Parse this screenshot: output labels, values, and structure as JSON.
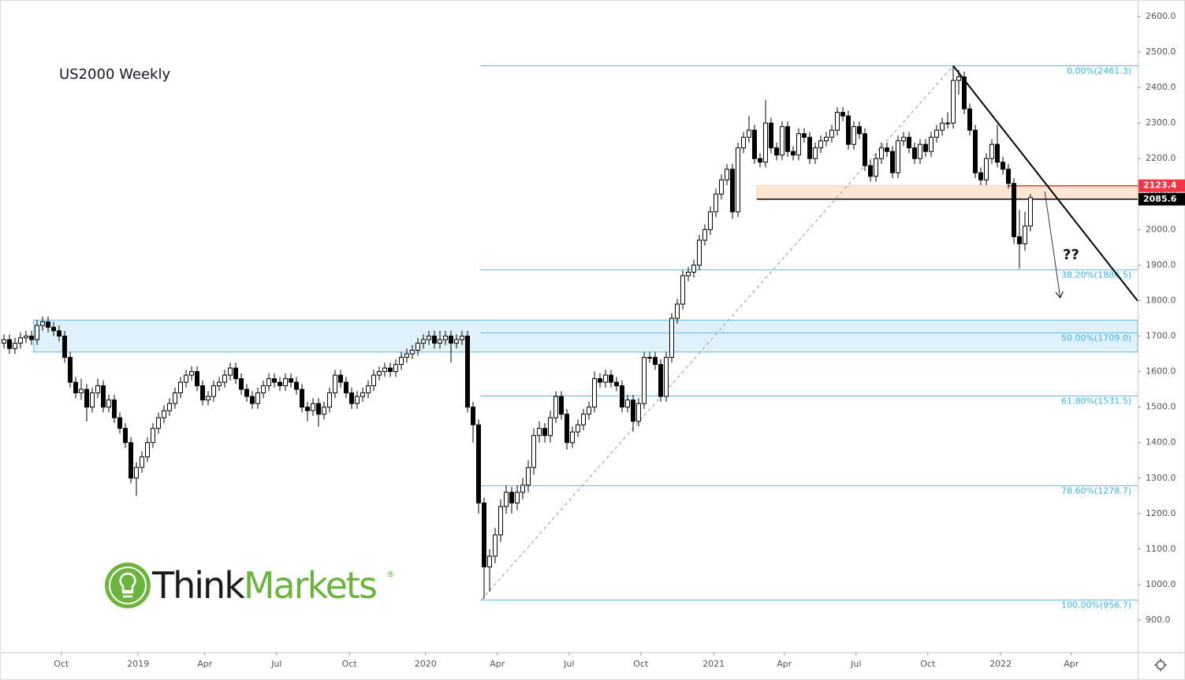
{
  "chart_data": {
    "type": "candlestick",
    "title": "US2000 Weekly",
    "xlim": [
      -0.714,
      205.43
    ],
    "ylim": [
      809.0,
      2646.6
    ],
    "xticks": [
      {
        "value": 10.4,
        "label": "Oct"
      },
      {
        "value": 24.3,
        "label": "2019"
      },
      {
        "value": 36.4,
        "label": "Apr"
      },
      {
        "value": 49.4,
        "label": "Jul"
      },
      {
        "value": 62.6,
        "label": "Oct"
      },
      {
        "value": 76.4,
        "label": "2020"
      },
      {
        "value": 89.4,
        "label": "Apr"
      },
      {
        "value": 102.4,
        "label": "Jul"
      },
      {
        "value": 115.4,
        "label": "Oct"
      },
      {
        "value": 128.6,
        "label": "2021"
      },
      {
        "value": 141.4,
        "label": "Apr"
      },
      {
        "value": 154.4,
        "label": "Jul"
      },
      {
        "value": 167.4,
        "label": "Oct"
      },
      {
        "value": 180.6,
        "label": "2022"
      },
      {
        "value": 193.4,
        "label": "Apr"
      }
    ],
    "yticks": [
      {
        "value": 900,
        "label": "900.0"
      },
      {
        "value": 1000,
        "label": "1000.0"
      },
      {
        "value": 1100,
        "label": "1100.0"
      },
      {
        "value": 1200,
        "label": "1200.0"
      },
      {
        "value": 1300,
        "label": "1300.0"
      },
      {
        "value": 1400,
        "label": "1400.0"
      },
      {
        "value": 1500,
        "label": "1500.0"
      },
      {
        "value": 1600,
        "label": "1600.0"
      },
      {
        "value": 1700,
        "label": "1700.0"
      },
      {
        "value": 1800,
        "label": "1800.0"
      },
      {
        "value": 1900,
        "label": "1900.0"
      },
      {
        "value": 2000,
        "label": "2000.0"
      },
      {
        "value": 2100,
        "label": "2100.0"
      },
      {
        "value": 2200,
        "label": "2200.0"
      },
      {
        "value": 2300,
        "label": "2300.0"
      },
      {
        "value": 2400,
        "label": "2400.0"
      },
      {
        "value": 2500,
        "label": "2500.0"
      },
      {
        "value": 2600,
        "label": "2600.0"
      }
    ],
    "up_color": "#ffffff",
    "down_color": "#000000",
    "candles": [
      [
        1680,
        1705,
        1665,
        1690
      ],
      [
        1690,
        1705,
        1650,
        1665
      ],
      [
        1665,
        1695,
        1650,
        1680
      ],
      [
        1680,
        1710,
        1665,
        1695
      ],
      [
        1695,
        1715,
        1680,
        1700
      ],
      [
        1700,
        1715,
        1675,
        1690
      ],
      [
        1690,
        1745,
        1675,
        1730
      ],
      [
        1730,
        1755,
        1715,
        1740
      ],
      [
        1740,
        1755,
        1710,
        1725
      ],
      [
        1725,
        1740,
        1700,
        1715
      ],
      [
        1715,
        1730,
        1685,
        1700
      ],
      [
        1700,
        1715,
        1625,
        1640
      ],
      [
        1640,
        1655,
        1555,
        1570
      ],
      [
        1570,
        1585,
        1525,
        1540
      ],
      [
        1540,
        1580,
        1520,
        1550
      ],
      [
        1550,
        1565,
        1460,
        1500
      ],
      [
        1500,
        1555,
        1485,
        1540
      ],
      [
        1540,
        1580,
        1525,
        1560
      ],
      [
        1560,
        1575,
        1485,
        1500
      ],
      [
        1500,
        1535,
        1485,
        1520
      ],
      [
        1520,
        1535,
        1455,
        1470
      ],
      [
        1470,
        1485,
        1425,
        1440
      ],
      [
        1440,
        1455,
        1385,
        1400
      ],
      [
        1400,
        1415,
        1285,
        1300
      ],
      [
        1300,
        1345,
        1250,
        1330
      ],
      [
        1330,
        1375,
        1315,
        1360
      ],
      [
        1360,
        1415,
        1345,
        1400
      ],
      [
        1400,
        1455,
        1385,
        1440
      ],
      [
        1440,
        1485,
        1425,
        1470
      ],
      [
        1470,
        1505,
        1455,
        1490
      ],
      [
        1490,
        1525,
        1475,
        1510
      ],
      [
        1510,
        1555,
        1495,
        1540
      ],
      [
        1540,
        1585,
        1525,
        1570
      ],
      [
        1570,
        1605,
        1555,
        1590
      ],
      [
        1590,
        1615,
        1575,
        1600
      ],
      [
        1600,
        1615,
        1545,
        1560
      ],
      [
        1560,
        1575,
        1505,
        1520
      ],
      [
        1520,
        1545,
        1505,
        1530
      ],
      [
        1530,
        1575,
        1515,
        1560
      ],
      [
        1560,
        1585,
        1545,
        1570
      ],
      [
        1570,
        1605,
        1555,
        1590
      ],
      [
        1590,
        1625,
        1575,
        1610
      ],
      [
        1610,
        1625,
        1565,
        1580
      ],
      [
        1580,
        1595,
        1535,
        1550
      ],
      [
        1550,
        1565,
        1515,
        1530
      ],
      [
        1530,
        1545,
        1495,
        1510
      ],
      [
        1510,
        1555,
        1495,
        1540
      ],
      [
        1540,
        1575,
        1525,
        1560
      ],
      [
        1560,
        1595,
        1545,
        1580
      ],
      [
        1580,
        1595,
        1555,
        1570
      ],
      [
        1570,
        1585,
        1545,
        1560
      ],
      [
        1560,
        1595,
        1545,
        1580
      ],
      [
        1580,
        1595,
        1555,
        1570
      ],
      [
        1570,
        1585,
        1535,
        1550
      ],
      [
        1550,
        1565,
        1485,
        1500
      ],
      [
        1500,
        1515,
        1460,
        1490
      ],
      [
        1490,
        1525,
        1475,
        1510
      ],
      [
        1510,
        1525,
        1445,
        1480
      ],
      [
        1480,
        1515,
        1465,
        1500
      ],
      [
        1500,
        1555,
        1485,
        1540
      ],
      [
        1540,
        1605,
        1525,
        1590
      ],
      [
        1590,
        1605,
        1555,
        1570
      ],
      [
        1570,
        1585,
        1525,
        1540
      ],
      [
        1540,
        1555,
        1495,
        1510
      ],
      [
        1510,
        1545,
        1495,
        1530
      ],
      [
        1530,
        1555,
        1515,
        1540
      ],
      [
        1540,
        1575,
        1525,
        1560
      ],
      [
        1560,
        1605,
        1545,
        1590
      ],
      [
        1590,
        1615,
        1575,
        1600
      ],
      [
        1600,
        1625,
        1585,
        1610
      ],
      [
        1610,
        1625,
        1585,
        1600
      ],
      [
        1600,
        1635,
        1585,
        1620
      ],
      [
        1620,
        1655,
        1605,
        1640
      ],
      [
        1640,
        1665,
        1625,
        1650
      ],
      [
        1650,
        1675,
        1635,
        1660
      ],
      [
        1660,
        1695,
        1645,
        1680
      ],
      [
        1680,
        1705,
        1665,
        1690
      ],
      [
        1690,
        1715,
        1675,
        1700
      ],
      [
        1700,
        1715,
        1665,
        1680
      ],
      [
        1680,
        1715,
        1665,
        1690
      ],
      [
        1690,
        1715,
        1675,
        1700
      ],
      [
        1700,
        1715,
        1625,
        1680
      ],
      [
        1680,
        1705,
        1665,
        1690
      ],
      [
        1690,
        1715,
        1675,
        1700
      ],
      [
        1700,
        1715,
        1485,
        1500
      ],
      [
        1500,
        1515,
        1400,
        1450
      ],
      [
        1450,
        1465,
        1200,
        1230
      ],
      [
        1230,
        1245,
        960,
        1050
      ],
      [
        1050,
        1100,
        980,
        1080
      ],
      [
        1080,
        1160,
        1060,
        1140
      ],
      [
        1140,
        1240,
        1120,
        1220
      ],
      [
        1220,
        1280,
        1200,
        1260
      ],
      [
        1260,
        1275,
        1200,
        1230
      ],
      [
        1230,
        1280,
        1210,
        1260
      ],
      [
        1260,
        1300,
        1240,
        1280
      ],
      [
        1280,
        1350,
        1260,
        1330
      ],
      [
        1330,
        1440,
        1310,
        1420
      ],
      [
        1420,
        1460,
        1400,
        1440
      ],
      [
        1440,
        1455,
        1400,
        1420
      ],
      [
        1420,
        1490,
        1400,
        1470
      ],
      [
        1470,
        1545,
        1455,
        1530
      ],
      [
        1530,
        1545,
        1465,
        1480
      ],
      [
        1480,
        1495,
        1380,
        1400
      ],
      [
        1400,
        1445,
        1385,
        1430
      ],
      [
        1430,
        1465,
        1415,
        1450
      ],
      [
        1450,
        1495,
        1435,
        1480
      ],
      [
        1480,
        1515,
        1465,
        1500
      ],
      [
        1500,
        1600,
        1485,
        1580
      ],
      [
        1580,
        1595,
        1555,
        1570
      ],
      [
        1570,
        1605,
        1555,
        1590
      ],
      [
        1590,
        1605,
        1555,
        1570
      ],
      [
        1570,
        1585,
        1545,
        1560
      ],
      [
        1560,
        1575,
        1485,
        1500
      ],
      [
        1500,
        1535,
        1485,
        1520
      ],
      [
        1520,
        1535,
        1430,
        1460
      ],
      [
        1460,
        1525,
        1445,
        1510
      ],
      [
        1510,
        1655,
        1495,
        1640
      ],
      [
        1640,
        1655,
        1625,
        1640
      ],
      [
        1640,
        1655,
        1605,
        1620
      ],
      [
        1620,
        1635,
        1515,
        1530
      ],
      [
        1530,
        1655,
        1515,
        1640
      ],
      [
        1640,
        1765,
        1625,
        1750
      ],
      [
        1750,
        1805,
        1735,
        1790
      ],
      [
        1790,
        1885,
        1775,
        1870
      ],
      [
        1870,
        1895,
        1855,
        1880
      ],
      [
        1880,
        1915,
        1865,
        1900
      ],
      [
        1900,
        1985,
        1885,
        1970
      ],
      [
        1970,
        2015,
        1955,
        2000
      ],
      [
        2000,
        2065,
        1985,
        2050
      ],
      [
        2050,
        2115,
        2035,
        2100
      ],
      [
        2100,
        2155,
        2085,
        2140
      ],
      [
        2140,
        2185,
        2125,
        2170
      ],
      [
        2170,
        2185,
        2030,
        2050
      ],
      [
        2050,
        2245,
        2035,
        2230
      ],
      [
        2230,
        2275,
        2215,
        2260
      ],
      [
        2260,
        2320,
        2245,
        2280
      ],
      [
        2280,
        2295,
        2185,
        2200
      ],
      [
        2200,
        2215,
        2175,
        2190
      ],
      [
        2190,
        2365,
        2175,
        2300
      ],
      [
        2300,
        2315,
        2215,
        2230
      ],
      [
        2230,
        2245,
        2195,
        2210
      ],
      [
        2210,
        2305,
        2195,
        2290
      ],
      [
        2290,
        2305,
        2205,
        2220
      ],
      [
        2220,
        2235,
        2195,
        2210
      ],
      [
        2210,
        2285,
        2195,
        2270
      ],
      [
        2270,
        2285,
        2245,
        2260
      ],
      [
        2260,
        2275,
        2185,
        2200
      ],
      [
        2200,
        2245,
        2185,
        2230
      ],
      [
        2230,
        2265,
        2215,
        2250
      ],
      [
        2250,
        2275,
        2235,
        2260
      ],
      [
        2260,
        2295,
        2245,
        2280
      ],
      [
        2280,
        2345,
        2265,
        2330
      ],
      [
        2330,
        2345,
        2305,
        2320
      ],
      [
        2320,
        2335,
        2225,
        2240
      ],
      [
        2240,
        2305,
        2225,
        2290
      ],
      [
        2290,
        2305,
        2255,
        2270
      ],
      [
        2270,
        2285,
        2165,
        2180
      ],
      [
        2180,
        2195,
        2135,
        2150
      ],
      [
        2150,
        2215,
        2135,
        2200
      ],
      [
        2200,
        2245,
        2185,
        2230
      ],
      [
        2230,
        2245,
        2205,
        2220
      ],
      [
        2220,
        2235,
        2145,
        2160
      ],
      [
        2160,
        2265,
        2145,
        2250
      ],
      [
        2250,
        2275,
        2235,
        2260
      ],
      [
        2260,
        2275,
        2215,
        2230
      ],
      [
        2230,
        2245,
        2185,
        2200
      ],
      [
        2200,
        2255,
        2185,
        2240
      ],
      [
        2240,
        2255,
        2205,
        2220
      ],
      [
        2220,
        2275,
        2205,
        2260
      ],
      [
        2260,
        2295,
        2245,
        2280
      ],
      [
        2280,
        2315,
        2265,
        2300
      ],
      [
        2300,
        2330,
        2285,
        2300
      ],
      [
        2300,
        2461,
        2285,
        2420
      ],
      [
        2420,
        2450,
        2380,
        2430
      ],
      [
        2430,
        2445,
        2325,
        2340
      ],
      [
        2340,
        2355,
        2265,
        2280
      ],
      [
        2280,
        2295,
        2145,
        2160
      ],
      [
        2160,
        2175,
        2125,
        2140
      ],
      [
        2140,
        2215,
        2125,
        2200
      ],
      [
        2200,
        2255,
        2185,
        2240
      ],
      [
        2240,
        2295,
        2175,
        2190
      ],
      [
        2190,
        2205,
        2155,
        2170
      ],
      [
        2170,
        2185,
        2115,
        2130
      ],
      [
        2130,
        2145,
        1960,
        1980
      ],
      [
        1980,
        2055,
        1890,
        1960
      ],
      [
        1960,
        2050,
        1940,
        2010
      ],
      [
        2010,
        2100,
        1995,
        2090
      ]
    ],
    "fib": {
      "start": 86.4,
      "color": "#5bbde8",
      "levels": [
        {
          "value": 2461.3,
          "label": "0.00%(2461.3)"
        },
        {
          "value": 1886.5,
          "label": "38.20%(1886.5)"
        },
        {
          "value": 1709.0,
          "label": "50.00%(1709.0)"
        },
        {
          "value": 1531.5,
          "label": "61.80%(1531.5)"
        },
        {
          "value": 1278.7,
          "label": "78.60%(1278.7)"
        },
        {
          "value": 956.7,
          "label": "100.00%(956.7)"
        }
      ]
    },
    "zones": [
      {
        "start": 5.4,
        "from": 1655,
        "to": 1745,
        "color": "#dff2fc",
        "border": "#5bbde8"
      },
      {
        "start": 136.4,
        "from": 2085.6,
        "to": 2123.4,
        "color": "#fde7d2",
        "border": "#f5d2b0"
      }
    ],
    "levels": [
      {
        "value": 2123.4,
        "start": 181.9,
        "color": "#f23645"
      },
      {
        "value": 2085.6,
        "start": 136.4,
        "color": "#000000"
      }
    ],
    "trendline": {
      "x": [
        172,
        205.43
      ],
      "y": [
        2461.3,
        1799
      ]
    },
    "diagonal": {
      "x": [
        86.5,
        172
      ],
      "y": [
        956.7,
        2461.3
      ]
    },
    "arrow": {
      "x": [
        188.6,
        191.4
      ],
      "y": [
        2107,
        1808
      ]
    },
    "note": "??"
  },
  "logo": {
    "think": "Think",
    "markets": "Markets",
    "mark": "®"
  }
}
